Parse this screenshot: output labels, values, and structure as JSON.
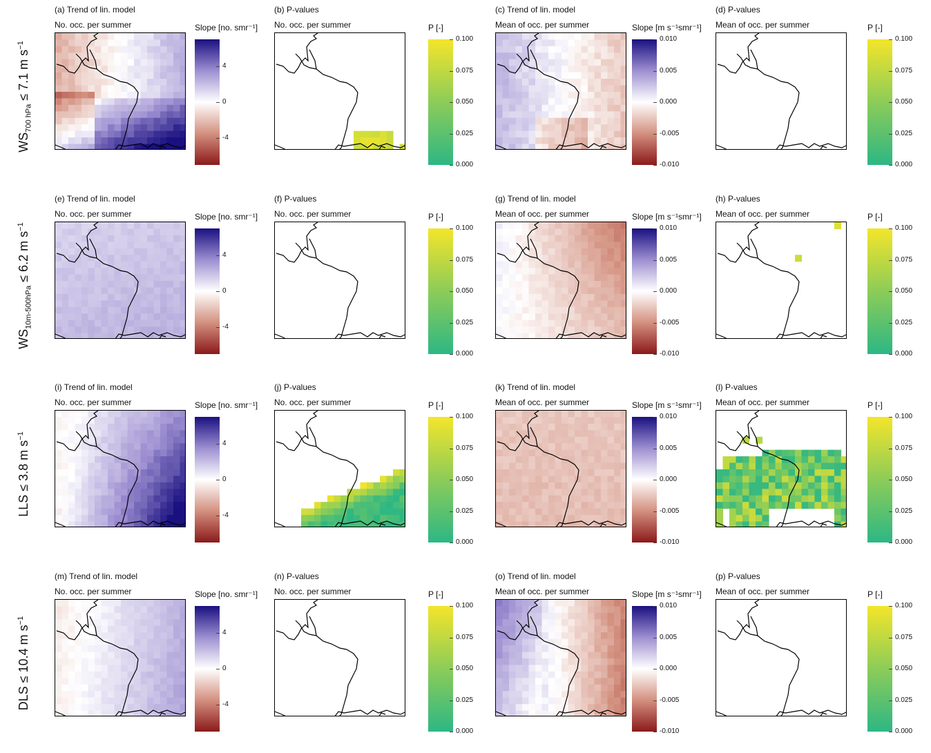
{
  "row_labels": [
    {
      "main": "WS",
      "sub": "700 hPa",
      "rest": " ≤ 7.1 m s",
      "sup": "−1"
    },
    {
      "main": "WS",
      "sub": "10m-500hPa",
      "rest": " ≤ 6.2 m s",
      "sup": "−1"
    },
    {
      "main": "LLS",
      "sub": "",
      "rest": " ≤ 3.8 m s",
      "sup": "−1"
    },
    {
      "main": "DLS",
      "sub": "",
      "rest": " ≤ 10.4 m s",
      "sup": "−1"
    }
  ],
  "panels": [
    {
      "title": "(a) Trend of lin. model",
      "subtitle": "No. occ. per summer"
    },
    {
      "title": "(b) P-values",
      "subtitle": "No. occ. per summer"
    },
    {
      "title": "(c) Trend of lin. model",
      "subtitle": "Mean of occ. per summer"
    },
    {
      "title": "(d) P-values",
      "subtitle": "Mean of occ. per summer"
    },
    {
      "title": "(e) Trend of lin. model",
      "subtitle": "No. occ. per summer"
    },
    {
      "title": "(f) P-values",
      "subtitle": "No. occ. per summer"
    },
    {
      "title": "(g) Trend of lin. model",
      "subtitle": "Mean of occ. per summer"
    },
    {
      "title": "(h) P-values",
      "subtitle": "Mean of occ. per summer"
    },
    {
      "title": "(i) Trend of lin. model",
      "subtitle": "No. occ. per summer"
    },
    {
      "title": "(j) P-values",
      "subtitle": "No. occ. per summer"
    },
    {
      "title": "(k) Trend of lin. model",
      "subtitle": "Mean of occ. per summer"
    },
    {
      "title": "(l) P-values",
      "subtitle": "Mean of occ. per summer"
    },
    {
      "title": "(m) Trend of lin. model",
      "subtitle": "No. occ. per summer"
    },
    {
      "title": "(n) P-values",
      "subtitle": "No. occ. per summer"
    },
    {
      "title": "(o) Trend of lin. model",
      "subtitle": "Mean of occ. per summer"
    },
    {
      "title": "(p) P-values",
      "subtitle": "Mean of occ. per summer"
    }
  ],
  "colorbars": {
    "slope_count": {
      "title": "Slope [no. smr⁻¹]",
      "ticks": [
        "4",
        "0",
        "-4"
      ],
      "range": [
        -7,
        7
      ],
      "tick_values": [
        4,
        0,
        -4
      ]
    },
    "slope_mean": {
      "title": "Slope [m s⁻¹smr⁻¹]",
      "ticks": [
        "0.010",
        "0.005",
        "0.000",
        "-0.005",
        "-0.010"
      ],
      "range": [
        -0.01,
        0.01
      ],
      "tick_values": [
        0.01,
        0.005,
        0,
        -0.005,
        -0.01
      ]
    },
    "pvalue": {
      "title": "P [-]",
      "ticks": [
        "0.100",
        "0.075",
        "0.050",
        "0.025",
        "0.000"
      ],
      "range": [
        0,
        0.1
      ],
      "tick_values": [
        0.1,
        0.075,
        0.05,
        0.025,
        0
      ]
    }
  },
  "colors": {
    "diverging_low": "#8b1a1a",
    "diverging_mid": "#ffffff",
    "diverging_high": "#1a1080",
    "pvalue_low": "#2db784",
    "pvalue_high": "#f4e52a",
    "border": "#000000"
  },
  "chart_data": [
    {
      "type": "heatmap",
      "panel": "a",
      "colorbar": "slope_count",
      "pattern": "mixed",
      "description_values": {
        "nw": -2,
        "ne": 2,
        "sw": 4,
        "se": 6
      }
    },
    {
      "type": "heatmap",
      "panel": "b",
      "colorbar": "pvalue",
      "pattern": "sparse_south"
    },
    {
      "type": "heatmap",
      "panel": "c",
      "colorbar": "slope_mean",
      "pattern": "west_pos_east_neg"
    },
    {
      "type": "heatmap",
      "panel": "d",
      "colorbar": "pvalue",
      "pattern": "none"
    },
    {
      "type": "heatmap",
      "panel": "e",
      "colorbar": "slope_count",
      "pattern": "all_pos_mild"
    },
    {
      "type": "heatmap",
      "panel": "f",
      "colorbar": "pvalue",
      "pattern": "none"
    },
    {
      "type": "heatmap",
      "panel": "g",
      "colorbar": "slope_mean",
      "pattern": "east_neg"
    },
    {
      "type": "heatmap",
      "panel": "h",
      "colorbar": "pvalue",
      "pattern": "two_cells"
    },
    {
      "type": "heatmap",
      "panel": "i",
      "colorbar": "slope_count",
      "pattern": "strong_pos_se"
    },
    {
      "type": "heatmap",
      "panel": "j",
      "colorbar": "pvalue",
      "pattern": "se_triangle"
    },
    {
      "type": "heatmap",
      "panel": "k",
      "colorbar": "slope_mean",
      "pattern": "all_neg_mild"
    },
    {
      "type": "heatmap",
      "panel": "l",
      "colorbar": "pvalue",
      "pattern": "central_band"
    },
    {
      "type": "heatmap",
      "panel": "m",
      "colorbar": "slope_count",
      "pattern": "east_pos"
    },
    {
      "type": "heatmap",
      "panel": "n",
      "colorbar": "pvalue",
      "pattern": "none"
    },
    {
      "type": "heatmap",
      "panel": "o",
      "colorbar": "slope_mean",
      "pattern": "west_pos_east_neg_strong"
    },
    {
      "type": "heatmap",
      "panel": "p",
      "colorbar": "pvalue",
      "pattern": "none"
    }
  ]
}
